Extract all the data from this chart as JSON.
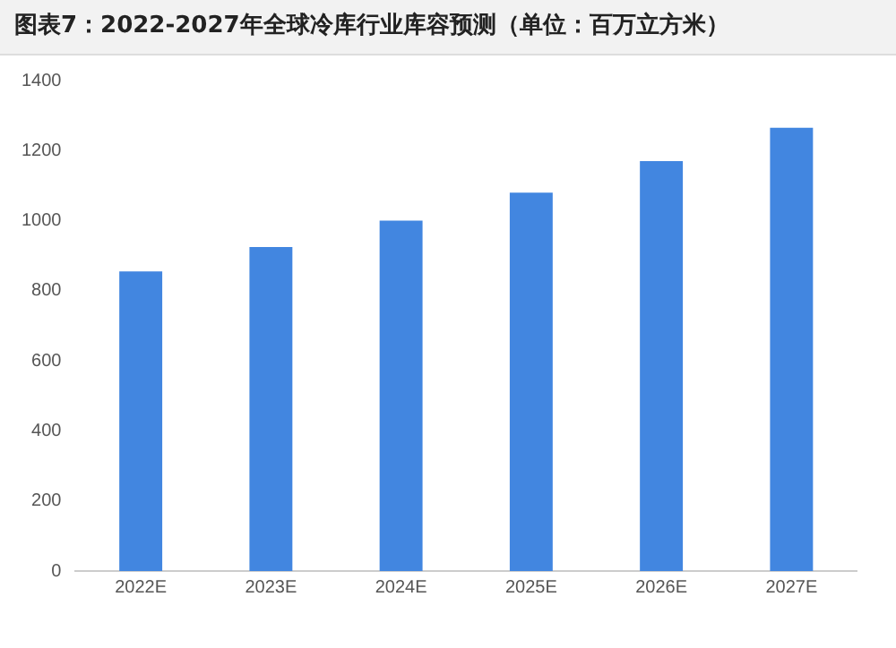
{
  "chart_data": {
    "type": "bar",
    "title": "图表7：2022-2027年全球冷库行业库容预测（单位：百万立方米）",
    "categories": [
      "2022E",
      "2023E",
      "2024E",
      "2025E",
      "2026E",
      "2027E"
    ],
    "values": [
      855,
      925,
      1000,
      1080,
      1170,
      1265
    ],
    "color": "#4286e0",
    "ylim": [
      0,
      1400
    ],
    "yticks": [
      0,
      200,
      400,
      600,
      800,
      1000,
      1200,
      1400
    ],
    "grid": false,
    "legend": false
  }
}
